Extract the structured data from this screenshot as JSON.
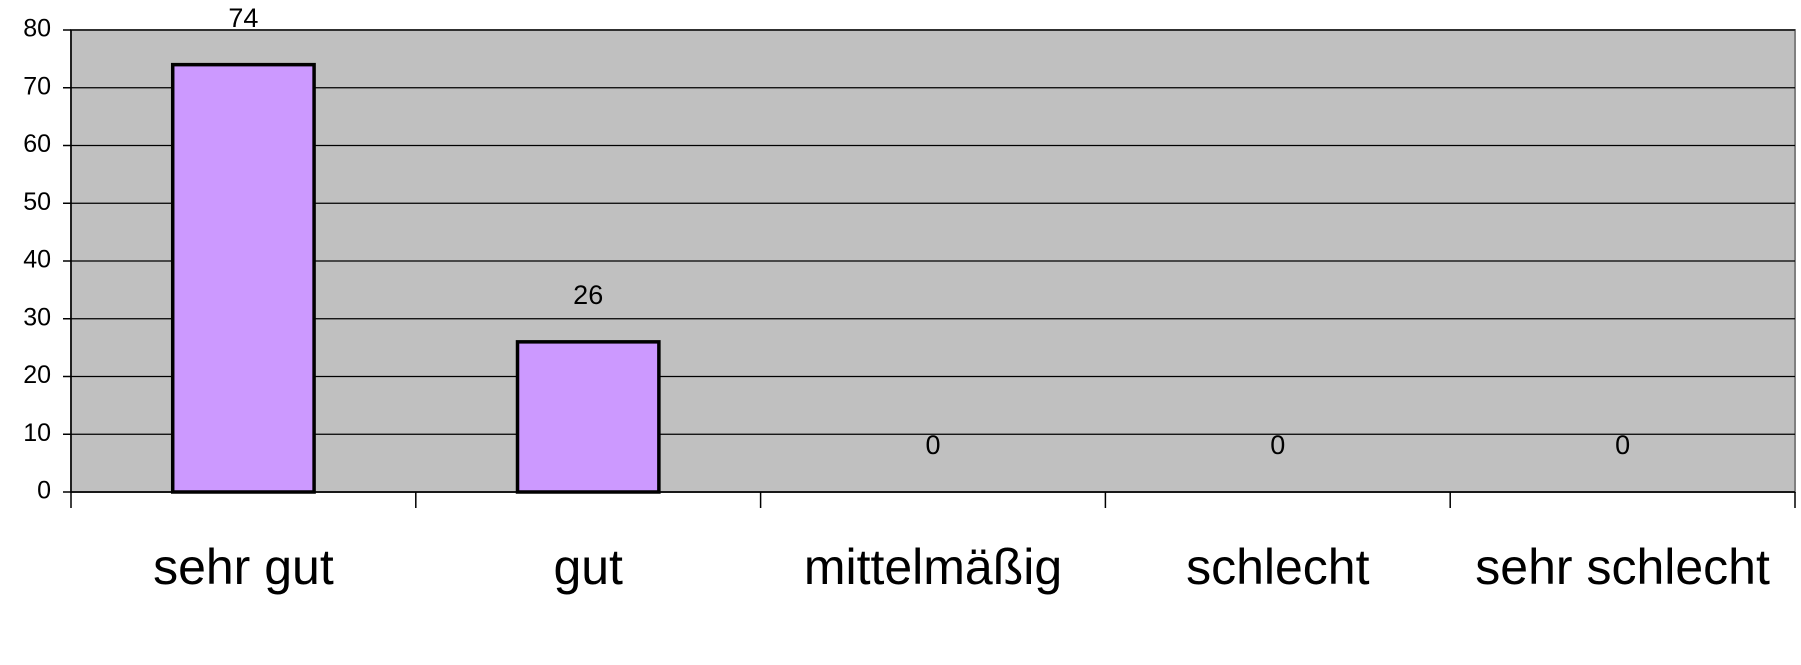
{
  "chart_data": {
    "type": "bar",
    "categories": [
      "sehr gut",
      "gut",
      "mittelmäßig",
      "schlecht",
      "sehr schlecht"
    ],
    "values": [
      74,
      26,
      0,
      0,
      0
    ],
    "color": "#cc99ff",
    "ylim": [
      0,
      80
    ],
    "yticks": [
      0,
      10,
      20,
      30,
      40,
      50,
      60,
      70,
      80
    ],
    "grid": true
  }
}
